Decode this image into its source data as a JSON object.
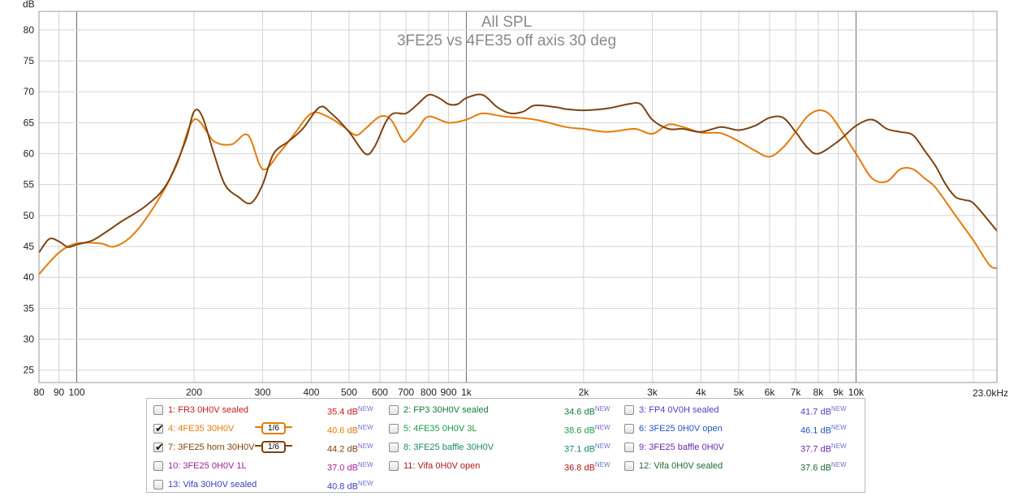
{
  "chart_data": {
    "type": "line",
    "title": "All SPL",
    "subtitle": "3FE25 vs 4FE35 off axis 30 deg",
    "xlabel": "",
    "ylabel": "dB",
    "x_unit_label": "23.0kHz",
    "x_scale": "log",
    "xlim": [
      80,
      23000
    ],
    "ylim": [
      23,
      83
    ],
    "grid": true,
    "x_ticks": [
      {
        "v": 80,
        "label": "80"
      },
      {
        "v": 90,
        "label": "90"
      },
      {
        "v": 100,
        "label": "100"
      },
      {
        "v": 200,
        "label": "200"
      },
      {
        "v": 300,
        "label": "300"
      },
      {
        "v": 400,
        "label": "400"
      },
      {
        "v": 500,
        "label": "500"
      },
      {
        "v": 600,
        "label": "600"
      },
      {
        "v": 700,
        "label": "700"
      },
      {
        "v": 800,
        "label": "800"
      },
      {
        "v": 900,
        "label": "900"
      },
      {
        "v": 1000,
        "label": "1k"
      },
      {
        "v": 2000,
        "label": "2k"
      },
      {
        "v": 3000,
        "label": "3k"
      },
      {
        "v": 4000,
        "label": "4k"
      },
      {
        "v": 5000,
        "label": "5k"
      },
      {
        "v": 6000,
        "label": "6k"
      },
      {
        "v": 7000,
        "label": "7k"
      },
      {
        "v": 8000,
        "label": "8k"
      },
      {
        "v": 9000,
        "label": "9k"
      },
      {
        "v": 10000,
        "label": "10k"
      }
    ],
    "y_ticks": [
      25,
      30,
      35,
      40,
      45,
      50,
      55,
      60,
      65,
      70,
      75,
      80
    ],
    "series": [
      {
        "name": "4: 4FE35 30H0V",
        "color": "#e57c0a",
        "points": [
          [
            80,
            40.5
          ],
          [
            90,
            44
          ],
          [
            100,
            45.5
          ],
          [
            115,
            45.5
          ],
          [
            125,
            45
          ],
          [
            140,
            47
          ],
          [
            160,
            52
          ],
          [
            180,
            58
          ],
          [
            200,
            65.5
          ],
          [
            225,
            62
          ],
          [
            250,
            61.5
          ],
          [
            275,
            63
          ],
          [
            300,
            57.5
          ],
          [
            330,
            60
          ],
          [
            360,
            63
          ],
          [
            400,
            66.5
          ],
          [
            440,
            66
          ],
          [
            480,
            64.5
          ],
          [
            520,
            63
          ],
          [
            550,
            64
          ],
          [
            600,
            66
          ],
          [
            640,
            65.5
          ],
          [
            680,
            62.5
          ],
          [
            700,
            62
          ],
          [
            750,
            64
          ],
          [
            800,
            66
          ],
          [
            900,
            65
          ],
          [
            1000,
            65.5
          ],
          [
            1100,
            66.5
          ],
          [
            1250,
            66
          ],
          [
            1500,
            65.5
          ],
          [
            1800,
            64.3
          ],
          [
            2000,
            64
          ],
          [
            2300,
            63.5
          ],
          [
            2700,
            64
          ],
          [
            3000,
            63.2
          ],
          [
            3300,
            64.7
          ],
          [
            3600,
            64.3
          ],
          [
            4000,
            63.4
          ],
          [
            4500,
            63.3
          ],
          [
            5000,
            62
          ],
          [
            5500,
            60.5
          ],
          [
            6000,
            59.5
          ],
          [
            6500,
            61
          ],
          [
            7000,
            63.5
          ],
          [
            7500,
            66
          ],
          [
            8000,
            67
          ],
          [
            8500,
            66.5
          ],
          [
            9000,
            64.5
          ],
          [
            10000,
            60
          ],
          [
            11000,
            56
          ],
          [
            12000,
            55.5
          ],
          [
            13000,
            57.5
          ],
          [
            14000,
            57.5
          ],
          [
            15000,
            56
          ],
          [
            16000,
            54.5
          ],
          [
            18000,
            50
          ],
          [
            20000,
            46
          ],
          [
            22000,
            42
          ],
          [
            23000,
            41.5
          ]
        ]
      },
      {
        "name": "7: 3FE25 horn 30H0V",
        "color": "#7f4310",
        "points": [
          [
            80,
            44
          ],
          [
            85,
            46.2
          ],
          [
            90,
            45.8
          ],
          [
            95,
            44.9
          ],
          [
            100,
            45.3
          ],
          [
            110,
            46
          ],
          [
            120,
            47.5
          ],
          [
            130,
            49
          ],
          [
            150,
            51.5
          ],
          [
            170,
            55
          ],
          [
            190,
            62
          ],
          [
            200,
            66.8
          ],
          [
            210,
            66
          ],
          [
            225,
            60
          ],
          [
            240,
            55
          ],
          [
            260,
            53
          ],
          [
            280,
            52
          ],
          [
            300,
            55
          ],
          [
            320,
            60
          ],
          [
            350,
            62
          ],
          [
            380,
            64
          ],
          [
            420,
            67.5
          ],
          [
            450,
            66.5
          ],
          [
            500,
            63.5
          ],
          [
            550,
            60
          ],
          [
            580,
            61
          ],
          [
            620,
            65
          ],
          [
            650,
            66.5
          ],
          [
            700,
            66.5
          ],
          [
            750,
            68
          ],
          [
            800,
            69.5
          ],
          [
            850,
            69
          ],
          [
            900,
            68
          ],
          [
            950,
            68
          ],
          [
            1000,
            69
          ],
          [
            1100,
            69.5
          ],
          [
            1200,
            67.5
          ],
          [
            1300,
            66.5
          ],
          [
            1400,
            66.8
          ],
          [
            1500,
            67.8
          ],
          [
            1700,
            67.5
          ],
          [
            1800,
            67.2
          ],
          [
            2000,
            67
          ],
          [
            2300,
            67.3
          ],
          [
            2600,
            68
          ],
          [
            2800,
            68
          ],
          [
            3000,
            65.5
          ],
          [
            3300,
            64
          ],
          [
            3600,
            64
          ],
          [
            4000,
            63.5
          ],
          [
            4500,
            64.3
          ],
          [
            5000,
            63.8
          ],
          [
            5500,
            64.5
          ],
          [
            6000,
            65.8
          ],
          [
            6500,
            65.8
          ],
          [
            7000,
            63.5
          ],
          [
            7500,
            61
          ],
          [
            8000,
            60
          ],
          [
            9000,
            62
          ],
          [
            10000,
            64.5
          ],
          [
            11000,
            65.5
          ],
          [
            12000,
            64
          ],
          [
            13000,
            63.5
          ],
          [
            14000,
            63
          ],
          [
            15000,
            60.5
          ],
          [
            16000,
            58
          ],
          [
            17000,
            55
          ],
          [
            18000,
            53
          ],
          [
            19000,
            52.5
          ],
          [
            20000,
            52
          ],
          [
            22000,
            49
          ],
          [
            23000,
            47.5
          ]
        ]
      }
    ]
  },
  "legend": {
    "items": [
      {
        "label": "1: FR3 0H0V sealed",
        "value": "35.4 dB",
        "new": "NEW",
        "checked": false,
        "color": "#c41c1c"
      },
      {
        "label": "2: FP3 30H0V sealed",
        "value": "34.6 dB",
        "new": "NEW",
        "checked": false,
        "color": "#147a3a"
      },
      {
        "label": "3: FP4 0V0H sealed",
        "value": "41.7 dB",
        "new": "NEW",
        "checked": false,
        "color": "#4a3fc8"
      },
      {
        "label": "4: 4FE35 30H0V",
        "value": "40.6 dB",
        "new": "NEW",
        "checked": true,
        "color": "#e57c0a",
        "smoothing": "1/6"
      },
      {
        "label": "5: 4FE35 0H0V 3L",
        "value": "38.6 dB",
        "new": "NEW",
        "checked": false,
        "color": "#1a9c44"
      },
      {
        "label": "6: 3FE25 0H0V open",
        "value": "46.1 dB",
        "new": "NEW",
        "checked": false,
        "color": "#1f55c4"
      },
      {
        "label": "7: 3FE25 horn 30H0V",
        "value": "44.2 dB",
        "new": "NEW",
        "checked": true,
        "color": "#7f4310",
        "smoothing": "1/6"
      },
      {
        "label": "8: 3FE25 baffle 30H0V",
        "value": "37.1 dB",
        "new": "NEW",
        "checked": false,
        "color": "#1a8a6a"
      },
      {
        "label": "9: 3FE25 baffle 0H0V",
        "value": "37.7 dB",
        "new": "NEW",
        "checked": false,
        "color": "#6a2ab0"
      },
      {
        "label": "10: 3FE25 0H0V 1L",
        "value": "37.0 dB",
        "new": "NEW",
        "checked": false,
        "color": "#a0209c"
      },
      {
        "label": "11: Vifa 0H0V open",
        "value": "36.8 dB",
        "new": "NEW",
        "checked": false,
        "color": "#b01818"
      },
      {
        "label": "12: Vifa 0H0V sealed",
        "value": "37.6 dB",
        "new": "NEW",
        "checked": false,
        "color": "#1a6a3a"
      },
      {
        "label": "13: Vifa 30H0V sealed",
        "value": "40.8 dB",
        "new": "NEW",
        "checked": false,
        "color": "#3a40c0"
      }
    ]
  }
}
